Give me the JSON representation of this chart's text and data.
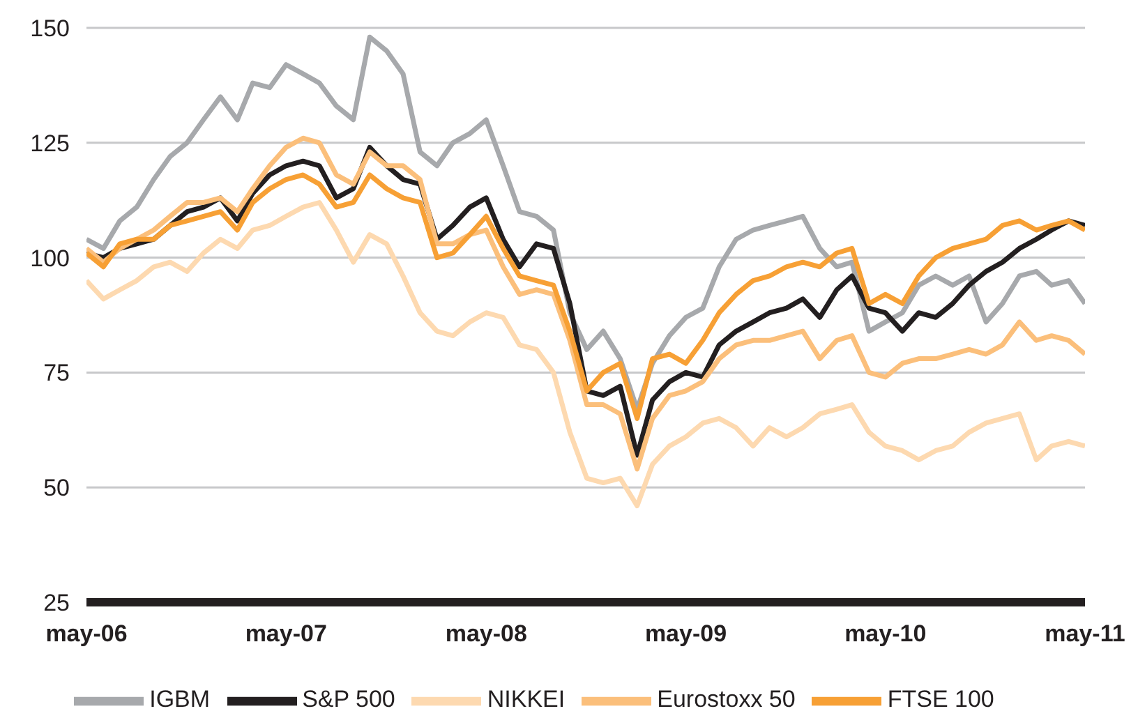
{
  "chart_data": {
    "type": "line",
    "grid": "y",
    "legend": "bottom",
    "ylim": [
      25,
      150
    ],
    "yticks": [
      25,
      50,
      75,
      100,
      125,
      150
    ],
    "xlim": [
      "2006-05",
      "2011-05"
    ],
    "xticks": [
      {
        "value": "2006-05",
        "label": "may-06"
      },
      {
        "value": "2007-05",
        "label": "may-07"
      },
      {
        "value": "2008-05",
        "label": "may-08"
      },
      {
        "value": "2009-05",
        "label": "may-09"
      },
      {
        "value": "2010-05",
        "label": "may-10"
      },
      {
        "value": "2011-05",
        "label": "may-11"
      }
    ],
    "x": [
      "2006-05",
      "2006-06",
      "2006-07",
      "2006-08",
      "2006-09",
      "2006-10",
      "2006-11",
      "2006-12",
      "2007-01",
      "2007-02",
      "2007-03",
      "2007-04",
      "2007-05",
      "2007-06",
      "2007-07",
      "2007-08",
      "2007-09",
      "2007-10",
      "2007-11",
      "2007-12",
      "2008-01",
      "2008-02",
      "2008-03",
      "2008-04",
      "2008-05",
      "2008-06",
      "2008-07",
      "2008-08",
      "2008-09",
      "2008-10",
      "2008-11",
      "2008-12",
      "2009-01",
      "2009-02",
      "2009-03",
      "2009-04",
      "2009-05",
      "2009-06",
      "2009-07",
      "2009-08",
      "2009-09",
      "2009-10",
      "2009-11",
      "2009-12",
      "2010-01",
      "2010-02",
      "2010-03",
      "2010-04",
      "2010-05",
      "2010-06",
      "2010-07",
      "2010-08",
      "2010-09",
      "2010-10",
      "2010-11",
      "2010-12",
      "2011-01",
      "2011-02",
      "2011-03",
      "2011-04",
      "2011-05"
    ],
    "series": [
      {
        "name": "IGBM",
        "color": "#a7a9ac",
        "values": [
          104,
          102,
          108,
          111,
          117,
          122,
          125,
          130,
          135,
          130,
          138,
          137,
          142,
          140,
          138,
          133,
          130,
          148,
          145,
          140,
          123,
          120,
          125,
          127,
          130,
          120,
          110,
          109,
          106,
          88,
          80,
          84,
          78,
          67,
          77,
          83,
          87,
          89,
          98,
          104,
          106,
          107,
          108,
          109,
          102,
          98,
          99,
          84,
          86,
          88,
          94,
          96,
          94,
          96,
          86,
          90,
          96,
          97,
          94,
          95,
          90
        ]
      },
      {
        "name": "S&P 500",
        "color": "#231f20",
        "values": [
          101,
          100,
          102,
          103,
          104,
          107,
          110,
          111,
          113,
          108,
          114,
          118,
          120,
          121,
          120,
          113,
          115,
          124,
          120,
          117,
          116,
          104,
          107,
          111,
          113,
          104,
          98,
          103,
          102,
          90,
          71,
          70,
          72,
          57,
          69,
          73,
          75,
          74,
          81,
          84,
          86,
          88,
          89,
          91,
          87,
          93,
          96,
          89,
          88,
          84,
          88,
          87,
          90,
          94,
          97,
          99,
          102,
          104,
          106,
          108,
          107
        ]
      },
      {
        "name": "NIKKEI",
        "color": "#fdd9b0",
        "values": [
          95,
          91,
          93,
          95,
          98,
          99,
          97,
          101,
          104,
          102,
          106,
          107,
          109,
          111,
          112,
          106,
          99,
          105,
          103,
          96,
          88,
          84,
          83,
          86,
          88,
          87,
          81,
          80,
          75,
          62,
          52,
          51,
          52,
          46,
          55,
          59,
          61,
          64,
          65,
          63,
          59,
          63,
          61,
          63,
          66,
          67,
          68,
          62,
          59,
          58,
          56,
          58,
          59,
          62,
          64,
          65,
          66,
          56,
          59,
          60,
          59
        ]
      },
      {
        "name": "Eurostoxx 50",
        "color": "#fbbf7b",
        "values": [
          102,
          99,
          102,
          104,
          106,
          109,
          112,
          112,
          113,
          110,
          115,
          120,
          124,
          126,
          125,
          118,
          116,
          123,
          120,
          120,
          117,
          103,
          103,
          105,
          106,
          98,
          92,
          93,
          92,
          82,
          68,
          68,
          66,
          54,
          65,
          70,
          71,
          73,
          78,
          81,
          82,
          82,
          83,
          84,
          78,
          82,
          83,
          75,
          74,
          77,
          78,
          78,
          79,
          80,
          79,
          81,
          86,
          82,
          83,
          82,
          79
        ]
      },
      {
        "name": "FTSE 100",
        "color": "#f7a035",
        "values": [
          101,
          98,
          103,
          104,
          104,
          107,
          108,
          109,
          110,
          106,
          112,
          115,
          117,
          118,
          116,
          111,
          112,
          118,
          115,
          113,
          112,
          100,
          101,
          105,
          109,
          102,
          96,
          95,
          94,
          84,
          71,
          75,
          77,
          65,
          78,
          79,
          77,
          82,
          88,
          92,
          95,
          96,
          98,
          99,
          98,
          101,
          102,
          90,
          92,
          90,
          96,
          100,
          102,
          103,
          104,
          107,
          108,
          106,
          107,
          108,
          106
        ]
      }
    ]
  }
}
